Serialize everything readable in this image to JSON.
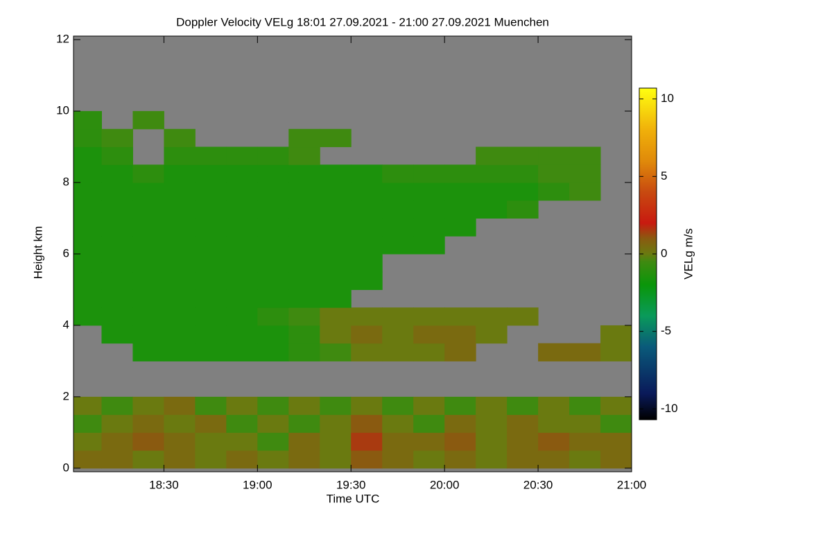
{
  "chart_data": {
    "type": "heatmap",
    "title": "Doppler Velocity VELg   18:01 27.09.2021 - 21:00 27.09.2021 Muenchen",
    "x_label": "Time UTC",
    "y_label": "Height km",
    "colorbar_label": "VELg m/s",
    "xlim": [
      1081,
      1260
    ],
    "xticks": [
      {
        "value": 1110,
        "label": "18:30"
      },
      {
        "value": 1140,
        "label": "19:00"
      },
      {
        "value": 1170,
        "label": "19:30"
      },
      {
        "value": 1200,
        "label": "20:00"
      },
      {
        "value": 1230,
        "label": "20:30"
      },
      {
        "value": 1260,
        "label": "21:00"
      }
    ],
    "ylim": [
      -0.1,
      12.1
    ],
    "yticks": [
      0,
      2,
      4,
      6,
      8,
      10,
      12
    ],
    "zlim": [
      -10.7,
      10.7
    ],
    "zticks": [
      -10,
      -5,
      0,
      5,
      10
    ],
    "nodata_color": "#808080",
    "colorscale": [
      [
        -10.7,
        "#000000"
      ],
      [
        -9,
        "#0a1a5a"
      ],
      [
        -6,
        "#0a5a7a"
      ],
      [
        -4,
        "#0a9a5a"
      ],
      [
        -2,
        "#0a960a"
      ],
      [
        -0.5,
        "#3f8a10"
      ],
      [
        0,
        "#6a7a10"
      ],
      [
        1,
        "#8a5a10"
      ],
      [
        2,
        "#c81a10"
      ],
      [
        4,
        "#c84a10"
      ],
      [
        6,
        "#e08a0a"
      ],
      [
        8,
        "#f0b00a"
      ],
      [
        10.7,
        "#ffff10"
      ]
    ],
    "xbins": [
      1081,
      1090,
      1100,
      1110,
      1120,
      1130,
      1140,
      1150,
      1160,
      1170,
      1180,
      1190,
      1200,
      1210,
      1220,
      1230,
      1240,
      1250,
      1260
    ],
    "ybins": [
      0,
      0.5,
      1,
      1.5,
      2,
      2.5,
      3,
      3.5,
      4,
      4.5,
      5,
      5.5,
      6,
      6.5,
      7,
      7.5,
      8,
      8.5,
      9,
      9.5,
      10,
      10.5,
      11,
      11.5,
      12
    ],
    "z": [
      [
        0.5,
        0.5,
        0,
        0.5,
        0,
        0.5,
        0,
        0.5,
        0,
        1,
        0.5,
        0,
        0.5,
        0,
        0.5,
        0.5,
        0,
        0.5
      ],
      [
        0,
        0.5,
        1,
        0.5,
        0,
        0,
        -0.5,
        0.5,
        0,
        1.5,
        0.5,
        0.5,
        1,
        0,
        0.5,
        1,
        0.5,
        0.5
      ],
      [
        -0.5,
        0,
        0.5,
        0,
        0.5,
        -0.5,
        0,
        -0.5,
        0,
        1,
        0,
        -0.5,
        0.5,
        0,
        0.5,
        0,
        0,
        -0.5
      ],
      [
        0,
        -0.5,
        0,
        0.5,
        -0.5,
        0,
        -0.5,
        0,
        -0.5,
        0,
        -0.5,
        0,
        -0.5,
        0,
        -0.5,
        0,
        -0.5,
        0
      ],
      [
        null,
        null,
        null,
        null,
        null,
        null,
        null,
        null,
        null,
        null,
        null,
        null,
        null,
        null,
        null,
        null,
        null,
        null
      ],
      [
        null,
        null,
        null,
        null,
        null,
        null,
        null,
        null,
        null,
        null,
        null,
        null,
        null,
        null,
        null,
        null,
        null,
        null
      ],
      [
        null,
        null,
        -1.5,
        -1.5,
        -1.5,
        -1.5,
        -1.5,
        -1,
        -0.5,
        0,
        0,
        0,
        0.5,
        null,
        null,
        0.5,
        0.5,
        0
      ],
      [
        null,
        -1.5,
        -1.5,
        -1.5,
        -1.5,
        -1.5,
        -1.5,
        -1,
        0,
        0.5,
        0,
        0.5,
        0.5,
        0,
        null,
        null,
        null,
        0
      ],
      [
        -1.5,
        -1.5,
        -1.5,
        -1.5,
        -1.5,
        -1.5,
        -1,
        -0.5,
        0,
        0,
        0,
        0,
        0,
        0,
        0,
        null,
        null,
        null
      ],
      [
        -1.5,
        -1.5,
        -1.5,
        -1.5,
        -1.5,
        -1.5,
        -1.5,
        -1.5,
        -1.5,
        null,
        null,
        null,
        null,
        null,
        null,
        null,
        null,
        null
      ],
      [
        -1.5,
        -1.5,
        -1.5,
        -1.5,
        -1.5,
        -1.5,
        -1.5,
        -1.5,
        -1.5,
        -1.5,
        null,
        null,
        null,
        null,
        null,
        null,
        null,
        null
      ],
      [
        -1.5,
        -1.5,
        -1.5,
        -1.5,
        -1.5,
        -1.5,
        -1.5,
        -1.5,
        -1.5,
        -1.5,
        null,
        null,
        null,
        null,
        null,
        null,
        null,
        null
      ],
      [
        -1.5,
        -1.5,
        -1.5,
        -1.5,
        -1.5,
        -1.5,
        -1.5,
        -1.5,
        -1.5,
        -1.5,
        -1.5,
        -1.5,
        null,
        null,
        null,
        null,
        null,
        null
      ],
      [
        -1.5,
        -1.5,
        -1.5,
        -1.5,
        -1.5,
        -1.5,
        -1.5,
        -1.5,
        -1.5,
        -1.5,
        -1.5,
        -1.5,
        -1.5,
        null,
        null,
        null,
        null,
        null
      ],
      [
        -1.5,
        -1.5,
        -1.5,
        -1.5,
        -1.5,
        -1.5,
        -1.5,
        -1.5,
        -1.5,
        -1.5,
        -1.5,
        -1.5,
        -1.5,
        -1.5,
        -1,
        null,
        null,
        null
      ],
      [
        -1.5,
        -1.5,
        -1.5,
        -1.5,
        -1.5,
        -1.5,
        -1.5,
        -1.5,
        -1.5,
        -1.5,
        -1.5,
        -1.5,
        -1.5,
        -1.5,
        -1.5,
        -1,
        -0.5,
        null
      ],
      [
        -1.5,
        -1.5,
        -1,
        -1.5,
        -1.5,
        -1.5,
        -1.5,
        -1.5,
        -1.5,
        -1.5,
        -1,
        -1,
        -1,
        -1,
        -1,
        -0.5,
        -0.5,
        null
      ],
      [
        -1.5,
        -1,
        null,
        -1,
        -1,
        -1,
        -1,
        -0.5,
        null,
        null,
        null,
        null,
        null,
        -0.5,
        -0.5,
        -0.5,
        -0.5,
        null
      ],
      [
        -1,
        -0.5,
        null,
        -0.5,
        null,
        null,
        null,
        -0.5,
        -0.5,
        null,
        null,
        null,
        null,
        null,
        null,
        null,
        null,
        null
      ],
      [
        -1,
        null,
        -0.5,
        null,
        null,
        null,
        null,
        null,
        null,
        null,
        null,
        null,
        null,
        null,
        null,
        null,
        null,
        null
      ],
      [
        null,
        null,
        null,
        null,
        null,
        null,
        null,
        null,
        null,
        null,
        null,
        null,
        null,
        null,
        null,
        null,
        null,
        null
      ],
      [
        null,
        null,
        null,
        null,
        null,
        null,
        null,
        null,
        null,
        null,
        null,
        null,
        null,
        null,
        null,
        null,
        null,
        null
      ],
      [
        null,
        null,
        null,
        null,
        null,
        null,
        null,
        null,
        null,
        null,
        null,
        null,
        null,
        null,
        null,
        null,
        null,
        null
      ],
      [
        null,
        null,
        null,
        null,
        null,
        null,
        null,
        null,
        null,
        null,
        null,
        null,
        null,
        null,
        null,
        null,
        null,
        null
      ]
    ]
  }
}
